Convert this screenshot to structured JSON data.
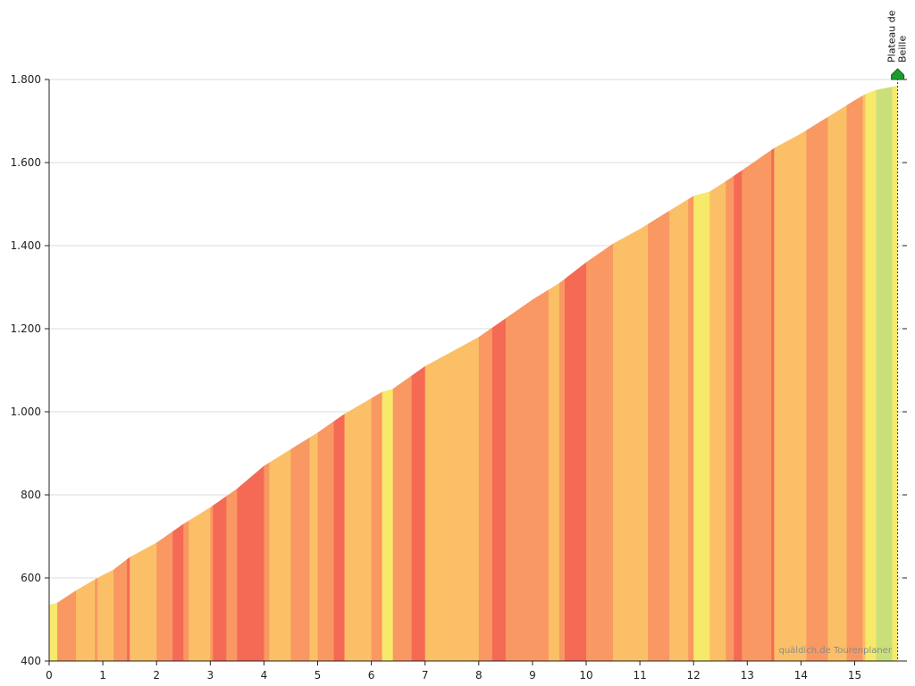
{
  "chart_data": {
    "type": "area",
    "title": "",
    "xlabel": "",
    "ylabel": "",
    "xlim": [
      0,
      15.8
    ],
    "ylim": [
      400,
      1800
    ],
    "x_ticks": [
      0,
      1,
      2,
      3,
      4,
      5,
      6,
      7,
      8,
      9,
      10,
      11,
      12,
      13,
      14,
      15
    ],
    "x_tick_labels": [
      "0",
      "1",
      "2",
      "3",
      "4",
      "5",
      "6",
      "7",
      "8",
      "9",
      "10",
      "11",
      "12",
      "13",
      "14",
      "15"
    ],
    "y_ticks": [
      400,
      600,
      800,
      1000,
      1200,
      1400,
      1600,
      1800
    ],
    "y_tick_labels": [
      "400",
      "600",
      "800",
      "1.000",
      "1.200",
      "1.400",
      "1.600",
      "1.800"
    ],
    "grid": true,
    "summit": {
      "x": 15.8,
      "label_lines": [
        "Plateau de",
        "Beille"
      ]
    },
    "credit": "quäldich.de Tourenplaner",
    "color_scale": {
      "flat": "#c9e07a",
      "easy": "#f7e96a",
      "moderate": "#fbc067",
      "steep": "#f99862",
      "very_steep": "#f46a55"
    },
    "profile": {
      "x": [
        0,
        0.15,
        0.5,
        0.9,
        1.0,
        1.2,
        1.5,
        2.0,
        2.5,
        3.0,
        3.5,
        4.0,
        4.5,
        5.0,
        5.5,
        5.9,
        6.2,
        6.4,
        7.0,
        7.5,
        8.0,
        8.5,
        9.0,
        9.5,
        10.0,
        10.5,
        11.0,
        11.5,
        12.0,
        12.3,
        12.6,
        13.0,
        13.5,
        14.0,
        14.5,
        15.0,
        15.2,
        15.4,
        15.8
      ],
      "elevation": [
        535,
        540,
        570,
        600,
        607,
        620,
        650,
        685,
        730,
        770,
        815,
        870,
        910,
        950,
        995,
        1025,
        1048,
        1055,
        1110,
        1145,
        1180,
        1225,
        1270,
        1310,
        1360,
        1405,
        1440,
        1480,
        1520,
        1530,
        1555,
        1590,
        1635,
        1670,
        1710,
        1750,
        1765,
        1775,
        1785
      ]
    }
  }
}
